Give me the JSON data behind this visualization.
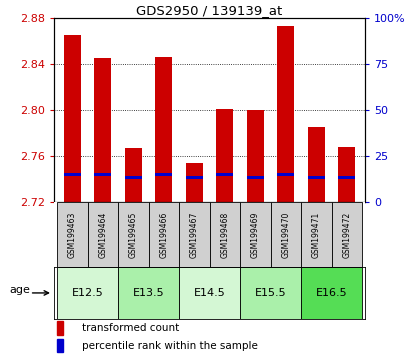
{
  "title": "GDS2950 / 139139_at",
  "samples": [
    "GSM199463",
    "GSM199464",
    "GSM199465",
    "GSM199466",
    "GSM199467",
    "GSM199468",
    "GSM199469",
    "GSM199470",
    "GSM199471",
    "GSM199472"
  ],
  "transformed_count": [
    2.865,
    2.845,
    2.767,
    2.846,
    2.754,
    2.801,
    2.8,
    2.873,
    2.785,
    2.768
  ],
  "percentile_rank": [
    15.0,
    15.0,
    13.0,
    15.0,
    13.0,
    15.0,
    13.0,
    15.0,
    13.0,
    13.0
  ],
  "y_min": 2.72,
  "y_max": 2.88,
  "y_ticks": [
    2.72,
    2.76,
    2.8,
    2.84,
    2.88
  ],
  "right_y_ticks": [
    0,
    25,
    50,
    75,
    100
  ],
  "right_y_tick_labels": [
    "0",
    "25",
    "50",
    "75",
    "100%"
  ],
  "age_groups": [
    {
      "label": "E12.5",
      "samples": [
        0,
        1
      ],
      "color": "#d4f7d4"
    },
    {
      "label": "E13.5",
      "samples": [
        2,
        3
      ],
      "color": "#aaf0aa"
    },
    {
      "label": "E14.5",
      "samples": [
        4,
        5
      ],
      "color": "#d4f7d4"
    },
    {
      "label": "E15.5",
      "samples": [
        6,
        7
      ],
      "color": "#aaf0aa"
    },
    {
      "label": "E16.5",
      "samples": [
        8,
        9
      ],
      "color": "#55dd55"
    }
  ],
  "bar_color": "#cc0000",
  "percentile_color": "#0000cc",
  "bar_width": 0.55,
  "percentile_bar_height": 0.0025,
  "label_color_left": "#cc0000",
  "label_color_right": "#0000cc",
  "grid_yticks": [
    2.76,
    2.8,
    2.84
  ]
}
